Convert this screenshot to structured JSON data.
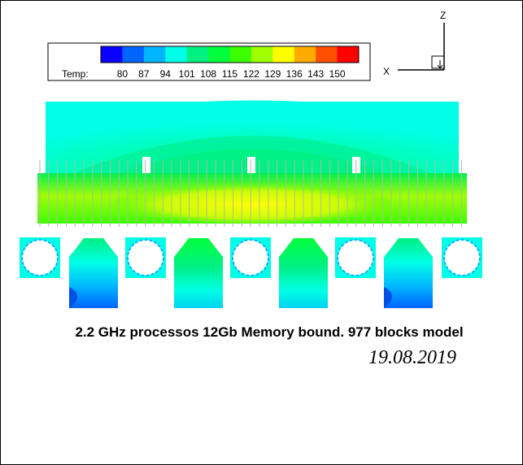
{
  "legend": {
    "label": "Temp:",
    "levels": [
      "80",
      "87",
      "94",
      "101",
      "108",
      "115",
      "122",
      "129",
      "136",
      "143",
      "150"
    ],
    "colors": [
      "#0a00ff",
      "#0064ff",
      "#00b4ff",
      "#00ffe6",
      "#00f082",
      "#00ff3c",
      "#3cff00",
      "#a0ff00",
      "#ffff00",
      "#ffaa00",
      "#ff5000",
      "#ff0000"
    ]
  },
  "axes": {
    "z_label": "Z",
    "x_label": "X"
  },
  "caption": "2.2 GHz processos 12Gb Memory bound. 977 blocks model",
  "date": "19.08.2019"
}
